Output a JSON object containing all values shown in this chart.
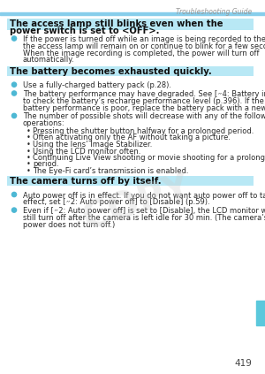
{
  "page_num": "419",
  "header_text": "Troubleshooting Guide",
  "header_line_color": "#87CEEB",
  "header_text_color": "#999999",
  "background_color": "#FFFFFF",
  "tab_color": "#5BC8DC",
  "section1_title_line1": "The access lamp still blinks even when the",
  "section1_title_line2": "power switch is set to <OFF>.",
  "section1_highlight": "#B8E8F5",
  "section1_bullets": [
    "If the power is turned off while an image is being recorded to the card,",
    "the access lamp will remain on or continue to blink for a few seconds.",
    "When the image recording is completed, the power will turn off",
    "automatically."
  ],
  "section2_title": "The battery becomes exhausted quickly.",
  "section2_highlight": "#B8E8F5",
  "section2_b1": "Use a fully-charged battery pack (p.28).",
  "section2_b2_lines": [
    "The battery performance may have degraded. See [״4: Battery info.]",
    "to check the battery’s recharge performance level (p.396). If the",
    "battery performance is poor, replace the battery pack with a new one."
  ],
  "section2_b2_bold": "״4: Battery info.",
  "section2_b3_lines": [
    "The number of possible shots will decrease with any of the following",
    "operations:"
  ],
  "section2_sub": [
    "Pressing the shutter button halfway for a prolonged period.",
    "Often activating only the AF without taking a picture.",
    "Using the lens’ Image Stabilizer.",
    "Using the LCD monitor often.",
    "Continuing Live View shooting or movie shooting for a prolonged",
    "period.",
    "The Eye-Fi card’s transmission is enabled."
  ],
  "section3_title": "The camera turns off by itself.",
  "section3_highlight": "#B8E8F5",
  "section3_b1_lines": [
    "Auto power off is in effect. If you do not want auto power off to take",
    "effect, set [״2: Auto power off] to [Disable] (p.59)."
  ],
  "section3_b1_bold": [
    "״2: Auto power off",
    "Disable"
  ],
  "section3_b2_lines": [
    "Even if [״2: Auto power off] is set to [Disable], the LCD monitor will",
    "still turn off after the camera is left idle for 30 min. (The camera’s",
    "power does not turn off.)"
  ],
  "section3_b2_bold": [
    "״2: Auto power off",
    "Disable"
  ],
  "watermark": "COPY",
  "bullet_color": "#4DB8D4",
  "text_color": "#2A2A2A",
  "title_color": "#111111"
}
